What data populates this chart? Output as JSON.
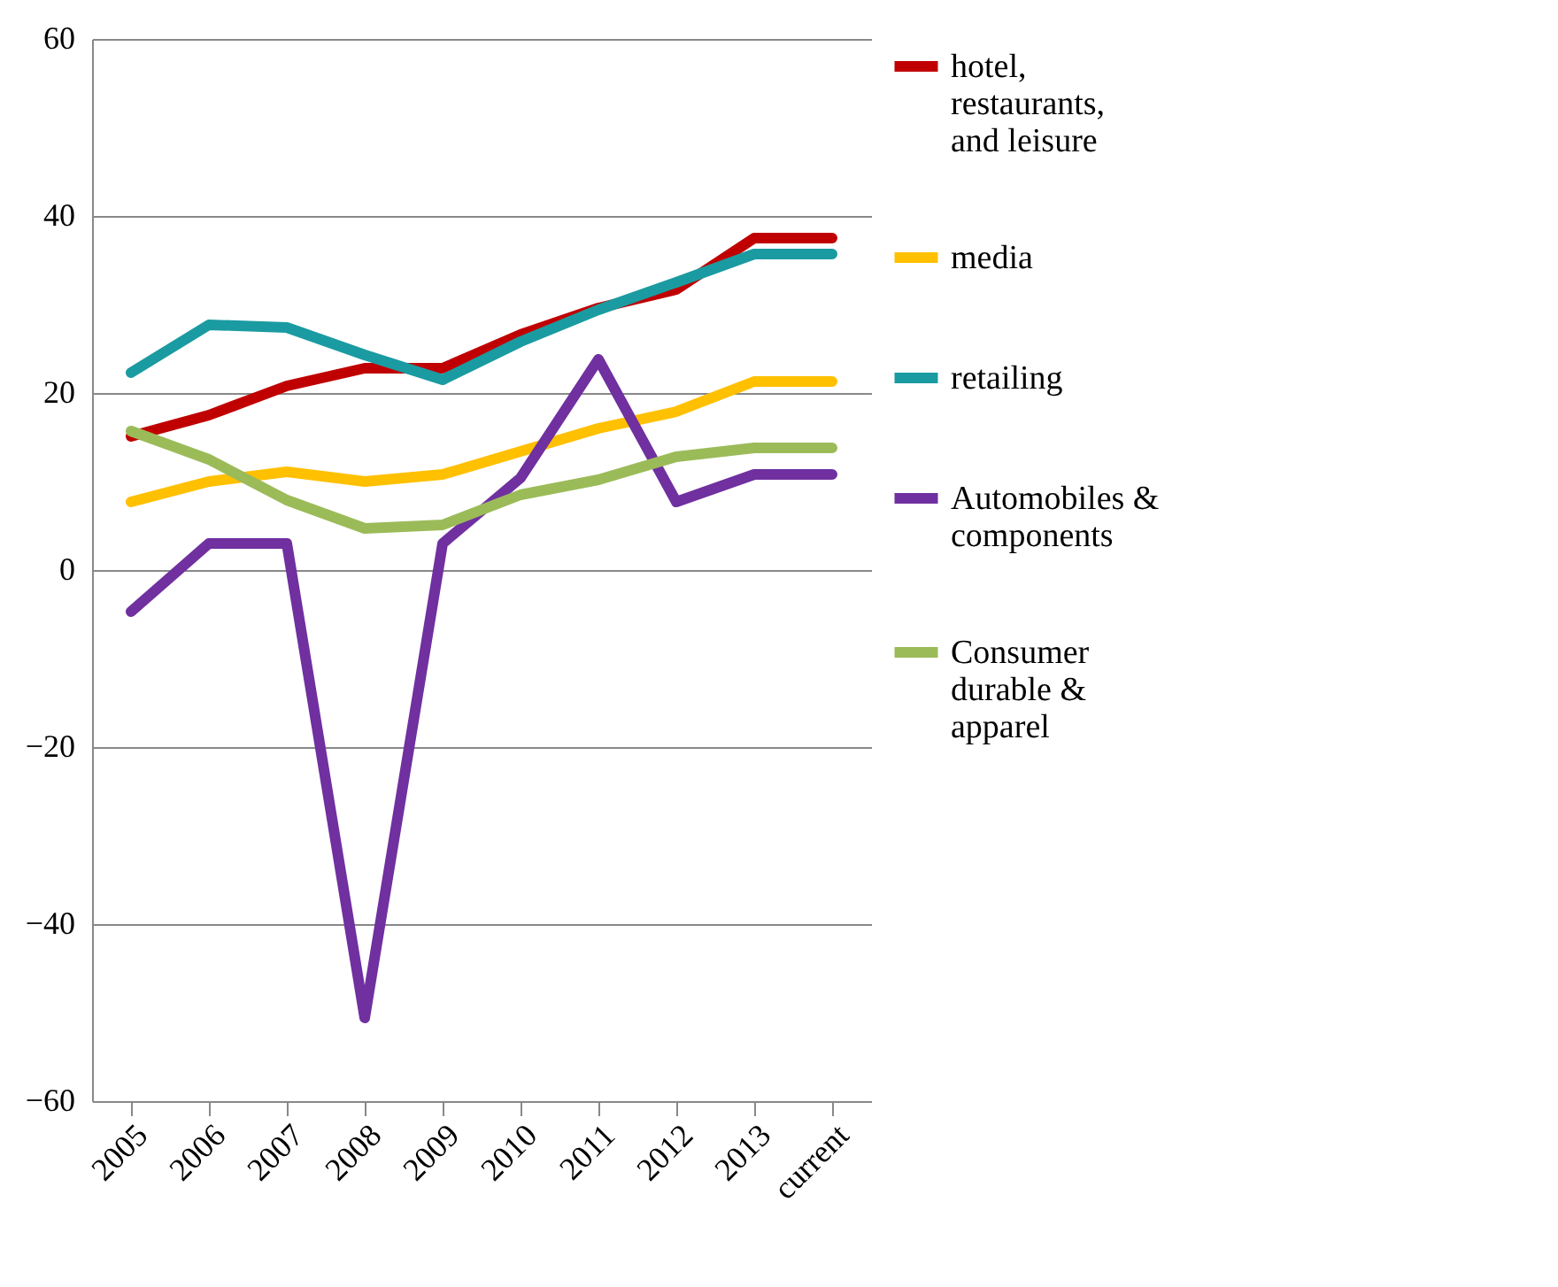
{
  "chart_data": {
    "type": "line",
    "categories": [
      "2005",
      "2006",
      "2007",
      "2008",
      "2009",
      "2010",
      "2011",
      "2012",
      "2013",
      "current"
    ],
    "series": [
      {
        "name": "hotel, restaurants, and leisure",
        "color": "#c00000",
        "values": [
          15.1,
          17.5,
          20.8,
          22.8,
          22.8,
          26.6,
          29.6,
          31.7,
          37.5,
          37.5
        ]
      },
      {
        "name": "media",
        "color": "#ffc000",
        "values": [
          7.7,
          10,
          11.1,
          10,
          10.8,
          13.4,
          16,
          17.9,
          21.3,
          21.3
        ]
      },
      {
        "name": "retailing",
        "color": "#1a9ba1",
        "values": [
          22.3,
          27.7,
          27.4,
          24.3,
          21.5,
          25.8,
          29.4,
          32.5,
          35.7,
          35.7
        ]
      },
      {
        "name": "Automobiles & components",
        "color": "#7030a0",
        "values": [
          -4.7,
          3,
          3,
          -50.6,
          3,
          10.4,
          23.8,
          7.7,
          10.8,
          10.8
        ]
      },
      {
        "name": "Consumer durable & apparel",
        "color": "#9bbb59",
        "values": [
          15.7,
          12.5,
          7.9,
          4.7,
          5.1,
          8.5,
          10.2,
          12.8,
          13.8,
          13.8
        ]
      }
    ],
    "ylim": [
      -60,
      60
    ],
    "yticks": [
      -60,
      -40,
      -20,
      0,
      20,
      40,
      60
    ],
    "grid": "y",
    "legend": "right"
  }
}
